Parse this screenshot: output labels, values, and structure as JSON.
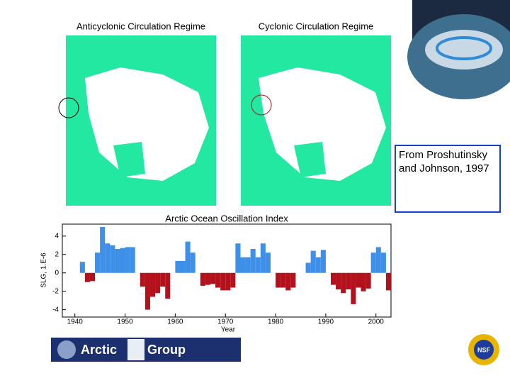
{
  "panels": [
    {
      "title": "Anticyclonic Circulation Regime"
    },
    {
      "title": "Cyclonic Circulation Regime"
    }
  ],
  "caption": "From Proshutinsky and Johnson, 1997",
  "logo": {
    "left": "Arctic",
    "right": "Group"
  },
  "badge": "NSF",
  "chart_data": {
    "type": "bar",
    "title": "Arctic Ocean Oscillation Index",
    "y_label": "SLG, 1.E-6",
    "x_label": "Year",
    "x": [
      1941,
      1942,
      1943,
      1944,
      1945,
      1946,
      1947,
      1948,
      1949,
      1950,
      1951,
      1953,
      1954,
      1955,
      1956,
      1957,
      1958,
      1960,
      1961,
      1962,
      1963,
      1965,
      1966,
      1967,
      1968,
      1969,
      1970,
      1971,
      1972,
      1973,
      1974,
      1975,
      1976,
      1977,
      1978,
      1980,
      1981,
      1982,
      1983,
      1986,
      1987,
      1988,
      1989,
      1991,
      1992,
      1993,
      1994,
      1995,
      1996,
      1997,
      1998,
      1999,
      2000,
      2001,
      2002
    ],
    "values": [
      1.2,
      -1,
      -0.9,
      2.2,
      5,
      3.2,
      3,
      2.6,
      2.7,
      2.8,
      2.8,
      -1.5,
      -4,
      -2.6,
      -2.2,
      -1.5,
      -2.8,
      1.3,
      1.3,
      3.4,
      2.2,
      -1.4,
      -1.3,
      -1.2,
      -1.6,
      -1.9,
      -1.9,
      -1.6,
      3.2,
      1.7,
      1.7,
      2.6,
      1.7,
      3.2,
      2.2,
      -1.6,
      -1.6,
      -1.9,
      -1.6,
      1.1,
      2.4,
      1.7,
      2.5,
      -1.3,
      -1.8,
      -2.2,
      -1.8,
      -3.4,
      -1.6,
      -2,
      -1.7,
      2.2,
      2.8,
      2.2,
      -1.9
    ],
    "positive_color": "#3d8fe8",
    "negative_color": "#b3121c",
    "xlim": [
      1937.5,
      2003
    ],
    "ylim": [
      -4.8,
      5.3
    ],
    "xticks": [
      1940,
      1950,
      1960,
      1970,
      1980,
      1990,
      2000
    ],
    "yticks": [
      -4,
      -2,
      0,
      2,
      4
    ]
  }
}
